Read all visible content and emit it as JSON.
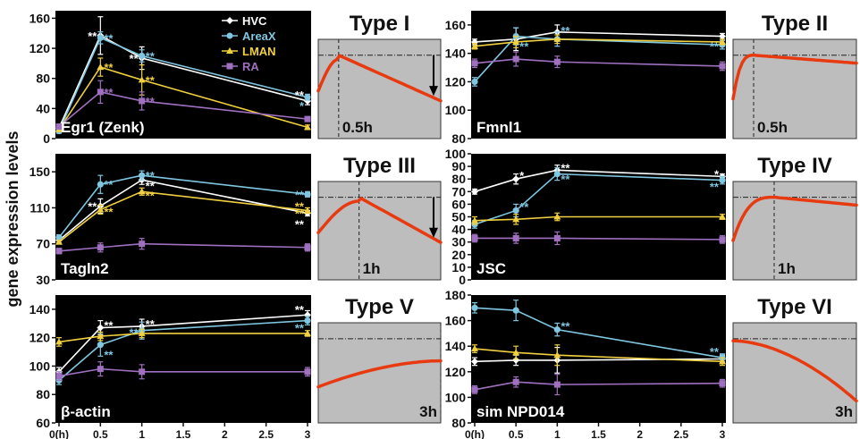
{
  "figure": {
    "ylabel": "gene expression levels",
    "legend": [
      {
        "name": "HVC",
        "color": "#ffffff"
      },
      {
        "name": "AreaX",
        "color": "#7fc6e0"
      },
      {
        "name": "LMAN",
        "color": "#f0d040"
      },
      {
        "name": "RA",
        "color": "#a070c0"
      }
    ]
  },
  "chart_data": [
    {
      "type": "line",
      "gene": "Egr1 (Zenk)",
      "xlim": [
        0,
        3
      ],
      "ylim": [
        0,
        170
      ],
      "yticks": [
        "0",
        "40",
        "80",
        "120",
        "160"
      ],
      "ytick_values": [
        0,
        40,
        80,
        120,
        160
      ],
      "xticks": [],
      "x": [
        0,
        0.5,
        1,
        3
      ],
      "series": [
        {
          "name": "HVC",
          "values": [
            14,
            137,
            107,
            50
          ],
          "err": [
            3,
            25,
            15,
            5
          ]
        },
        {
          "name": "AreaX",
          "values": [
            10,
            134,
            110,
            55
          ],
          "err": [
            3,
            8,
            8,
            4
          ]
        },
        {
          "name": "LMAN",
          "values": [
            12,
            95,
            78,
            15
          ],
          "err": [
            2,
            12,
            20,
            3
          ]
        },
        {
          "name": "RA",
          "values": [
            16,
            62,
            50,
            26
          ],
          "err": [
            2,
            15,
            12,
            3
          ]
        }
      ],
      "stars": [
        {
          "x": 0.5,
          "y": 137,
          "text": "**",
          "color": "#ffffff",
          "side": "left"
        },
        {
          "x": 0.5,
          "y": 134,
          "text": "**",
          "color": "#7fc6e0",
          "side": "right"
        },
        {
          "x": 0.5,
          "y": 95,
          "text": "**",
          "color": "#f0d040",
          "side": "right"
        },
        {
          "x": 0.5,
          "y": 62,
          "text": "**",
          "color": "#a070c0",
          "side": "right"
        },
        {
          "x": 1,
          "y": 107,
          "text": "**",
          "color": "#ffffff",
          "side": "left"
        },
        {
          "x": 1,
          "y": 110,
          "text": "**",
          "color": "#7fc6e0",
          "side": "right"
        },
        {
          "x": 1,
          "y": 78,
          "text": "**",
          "color": "#f0d040",
          "side": "right"
        },
        {
          "x": 1,
          "y": 50,
          "text": "**",
          "color": "#a070c0",
          "side": "right"
        },
        {
          "x": 3,
          "y": 58,
          "text": "**",
          "color": "#ffffff",
          "side": "left"
        },
        {
          "x": 3,
          "y": 44,
          "text": "*",
          "color": "#7fc6e0",
          "side": "left"
        }
      ]
    },
    {
      "type": "line",
      "gene": "Fmnl1",
      "xlim": [
        0,
        3
      ],
      "ylim": [
        80,
        170
      ],
      "yticks": [
        "80",
        "100",
        "120",
        "140",
        "160"
      ],
      "ytick_values": [
        80,
        100,
        120,
        140,
        160
      ],
      "xticks": [],
      "x": [
        0,
        0.5,
        1,
        3
      ],
      "series": [
        {
          "name": "HVC",
          "values": [
            148,
            150,
            155,
            152
          ],
          "err": [
            2,
            8,
            5,
            2
          ]
        },
        {
          "name": "AreaX",
          "values": [
            120,
            152,
            150,
            146
          ],
          "err": [
            3,
            6,
            5,
            3
          ]
        },
        {
          "name": "LMAN",
          "values": [
            145,
            148,
            150,
            148
          ],
          "err": [
            2,
            4,
            3,
            2
          ]
        },
        {
          "name": "RA",
          "values": [
            133,
            136,
            134,
            131
          ],
          "err": [
            3,
            5,
            4,
            3
          ]
        }
      ],
      "stars": [
        {
          "x": 0.5,
          "y": 145,
          "text": "**",
          "color": "#7fc6e0",
          "side": "right"
        },
        {
          "x": 1,
          "y": 156,
          "text": "**",
          "color": "#7fc6e0",
          "side": "right"
        },
        {
          "x": 3,
          "y": 145,
          "text": "**",
          "color": "#7fc6e0",
          "side": "left"
        }
      ]
    },
    {
      "type": "line",
      "gene": "Tagln2",
      "xlim": [
        0,
        3
      ],
      "ylim": [
        30,
        170
      ],
      "yticks": [
        "30",
        "70",
        "110",
        "150"
      ],
      "ytick_values": [
        30,
        70,
        110,
        150
      ],
      "xticks": [],
      "x": [
        0,
        0.5,
        1,
        3
      ],
      "series": [
        {
          "name": "HVC",
          "values": [
            74,
            112,
            141,
            104
          ],
          "err": [
            3,
            8,
            5,
            3
          ]
        },
        {
          "name": "AreaX",
          "values": [
            77,
            136,
            146,
            125
          ],
          "err": [
            3,
            10,
            5,
            3
          ]
        },
        {
          "name": "LMAN",
          "values": [
            72,
            108,
            128,
            107
          ],
          "err": [
            2,
            5,
            4,
            3
          ]
        },
        {
          "name": "RA",
          "values": [
            62,
            66,
            70,
            66
          ],
          "err": [
            3,
            5,
            6,
            4
          ]
        }
      ],
      "stars": [
        {
          "x": 0.5,
          "y": 112,
          "text": "**",
          "color": "#ffffff",
          "side": "left"
        },
        {
          "x": 0.5,
          "y": 136,
          "text": "**",
          "color": "#7fc6e0",
          "side": "right"
        },
        {
          "x": 0.5,
          "y": 106,
          "text": "**",
          "color": "#f0d040",
          "side": "right"
        },
        {
          "x": 1,
          "y": 146,
          "text": "**",
          "color": "#7fc6e0",
          "side": "right"
        },
        {
          "x": 1,
          "y": 135,
          "text": "**",
          "color": "#ffffff",
          "side": "right"
        },
        {
          "x": 1,
          "y": 124,
          "text": "**",
          "color": "#f0d040",
          "side": "right"
        },
        {
          "x": 3,
          "y": 125,
          "text": "**",
          "color": "#7fc6e0",
          "side": "left"
        },
        {
          "x": 3,
          "y": 112,
          "text": "**",
          "color": "#f0d040",
          "side": "left"
        },
        {
          "x": 3,
          "y": 104,
          "text": "**",
          "color": "#f0d040",
          "side": "left"
        },
        {
          "x": 3,
          "y": 92,
          "text": "**",
          "color": "#ffffff",
          "side": "left"
        }
      ]
    },
    {
      "type": "line",
      "gene": "JSC",
      "xlim": [
        0,
        3
      ],
      "ylim": [
        0,
        100
      ],
      "yticks": [
        "0",
        "10",
        "20",
        "30",
        "40",
        "50",
        "60",
        "70",
        "80",
        "90",
        "100"
      ],
      "ytick_values": [
        0,
        10,
        20,
        30,
        40,
        50,
        60,
        70,
        80,
        90,
        100
      ],
      "xticks": [],
      "x": [
        0,
        0.5,
        1,
        3
      ],
      "series": [
        {
          "name": "HVC",
          "values": [
            70,
            80,
            87,
            82
          ],
          "err": [
            2,
            4,
            4,
            2
          ]
        },
        {
          "name": "AreaX",
          "values": [
            44,
            55,
            84,
            79
          ],
          "err": [
            3,
            5,
            5,
            3
          ]
        },
        {
          "name": "LMAN",
          "values": [
            47,
            48,
            50,
            50
          ],
          "err": [
            3,
            4,
            3,
            2
          ]
        },
        {
          "name": "RA",
          "values": [
            33,
            33,
            33,
            32
          ],
          "err": [
            3,
            4,
            5,
            3
          ]
        }
      ],
      "stars": [
        {
          "x": 0.5,
          "y": 83,
          "text": "*",
          "color": "#ffffff",
          "side": "right"
        },
        {
          "x": 0.5,
          "y": 58,
          "text": "**",
          "color": "#7fc6e0",
          "side": "right"
        },
        {
          "x": 1,
          "y": 89,
          "text": "**",
          "color": "#ffffff",
          "side": "right"
        },
        {
          "x": 1,
          "y": 80,
          "text": "**",
          "color": "#7fc6e0",
          "side": "right"
        },
        {
          "x": 3,
          "y": 84,
          "text": "*",
          "color": "#ffffff",
          "side": "left"
        },
        {
          "x": 3,
          "y": 74,
          "text": "**",
          "color": "#7fc6e0",
          "side": "left"
        }
      ]
    },
    {
      "type": "line",
      "gene": "β-actin",
      "xlim": [
        0,
        3
      ],
      "ylim": [
        60,
        150
      ],
      "yticks": [
        "60",
        "80",
        "100",
        "120",
        "140"
      ],
      "ytick_values": [
        60,
        80,
        100,
        120,
        140
      ],
      "xticks": [
        "0(h)",
        "0.5",
        "1",
        "1.5",
        "2",
        "2.5",
        "3"
      ],
      "xtick_values": [
        0,
        0.5,
        1,
        1.5,
        2,
        2.5,
        3
      ],
      "x": [
        0,
        0.5,
        1,
        3
      ],
      "series": [
        {
          "name": "HVC",
          "values": [
            96,
            127,
            128,
            136
          ],
          "err": [
            3,
            5,
            5,
            3
          ]
        },
        {
          "name": "AreaX",
          "values": [
            90,
            115,
            125,
            132
          ],
          "err": [
            3,
            8,
            6,
            3
          ]
        },
        {
          "name": "LMAN",
          "values": [
            117,
            121,
            123,
            123
          ],
          "err": [
            3,
            3,
            3,
            2
          ]
        },
        {
          "name": "RA",
          "values": [
            93,
            98,
            96,
            96
          ],
          "err": [
            3,
            5,
            5,
            3
          ]
        }
      ],
      "stars": [
        {
          "x": 0.5,
          "y": 129,
          "text": "**",
          "color": "#ffffff",
          "side": "right"
        },
        {
          "x": 0.5,
          "y": 108,
          "text": "**",
          "color": "#7fc6e0",
          "side": "right"
        },
        {
          "x": 1,
          "y": 124,
          "text": "**",
          "color": "#7fc6e0",
          "side": "left"
        },
        {
          "x": 1,
          "y": 130,
          "text": "**",
          "color": "#ffffff",
          "side": "right"
        },
        {
          "x": 3,
          "y": 140,
          "text": "**",
          "color": "#ffffff",
          "side": "left"
        },
        {
          "x": 3,
          "y": 127,
          "text": "**",
          "color": "#7fc6e0",
          "side": "left"
        }
      ]
    },
    {
      "type": "line",
      "gene": "sim NPD014",
      "xlim": [
        0,
        3
      ],
      "ylim": [
        80,
        180
      ],
      "yticks": [
        "80",
        "100",
        "120",
        "140",
        "160",
        "180"
      ],
      "ytick_values": [
        80,
        100,
        120,
        140,
        160,
        180
      ],
      "xticks": [
        "0(h)",
        "0.5",
        "1",
        "1.5",
        "2",
        "2.5",
        "3"
      ],
      "xtick_values": [
        0,
        0.5,
        1,
        1.5,
        2,
        2.5,
        3
      ],
      "x": [
        0,
        0.5,
        1,
        3
      ],
      "series": [
        {
          "name": "HVC",
          "values": [
            128,
            129,
            129,
            130
          ],
          "err": [
            3,
            4,
            10,
            3
          ]
        },
        {
          "name": "AreaX",
          "values": [
            170,
            168,
            153,
            131
          ],
          "err": [
            4,
            8,
            5,
            3
          ]
        },
        {
          "name": "LMAN",
          "values": [
            138,
            135,
            133,
            128
          ],
          "err": [
            3,
            5,
            8,
            3
          ]
        },
        {
          "name": "RA",
          "values": [
            106,
            112,
            110,
            111
          ],
          "err": [
            3,
            4,
            8,
            3
          ]
        }
      ],
      "stars": [
        {
          "x": 1,
          "y": 156,
          "text": "**",
          "color": "#7fc6e0",
          "side": "right"
        },
        {
          "x": 3,
          "y": 136,
          "text": "**",
          "color": "#7fc6e0",
          "side": "left"
        }
      ]
    }
  ],
  "types": [
    {
      "title": "Type I",
      "label": "0.5h",
      "peak_x": 0.5,
      "shape": "peak-decline",
      "arrow": true
    },
    {
      "title": "Type II",
      "label": "0.5h",
      "peak_x": 0.5,
      "shape": "plateau",
      "arrow": false
    },
    {
      "title": "Type III",
      "label": "1h",
      "peak_x": 1,
      "shape": "peak-decline",
      "arrow": true
    },
    {
      "title": "Type IV",
      "label": "1h",
      "peak_x": 1,
      "shape": "plateau",
      "arrow": false
    },
    {
      "title": "Type V",
      "label": "3h",
      "peak_x": 3,
      "shape": "rise",
      "arrow": false
    },
    {
      "title": "Type VI",
      "label": "3h",
      "peak_x": 3,
      "shape": "decline",
      "arrow": false
    }
  ],
  "colors": {
    "HVC": "#ffffff",
    "AreaX": "#7fc6e0",
    "LMAN": "#f0d040",
    "RA": "#a070c0",
    "panel_bg": "#000000",
    "type_bg": "#bdbdbd",
    "curve": "#e83a10"
  }
}
